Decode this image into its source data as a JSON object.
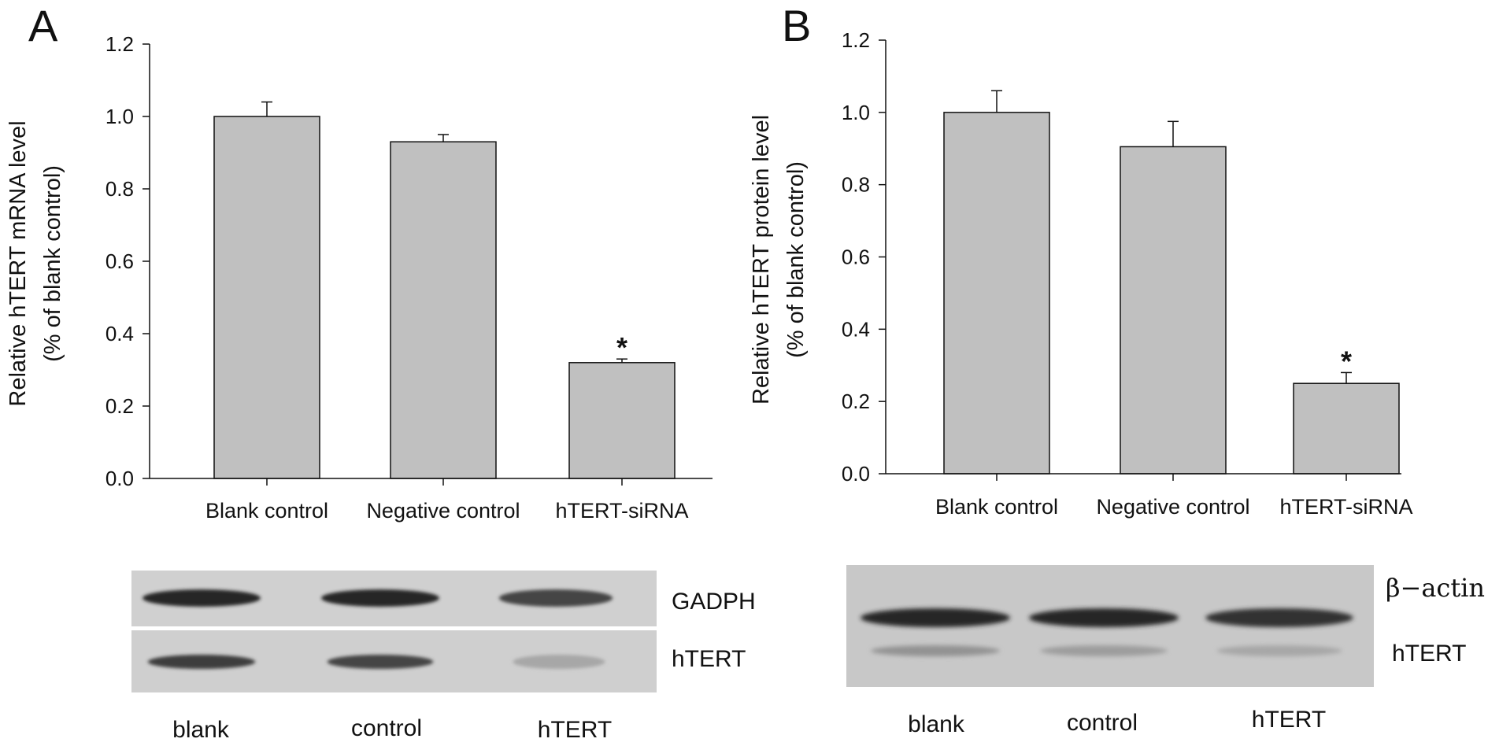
{
  "chart_data": [
    {
      "panel": "A",
      "type": "bar",
      "categories": [
        "Blank control",
        "Negative control",
        "hTERT-siRNA"
      ],
      "values": [
        1.0,
        0.93,
        0.32
      ],
      "errors": [
        0.04,
        0.02,
        0.01
      ],
      "significance": [
        "",
        "",
        "*"
      ],
      "ylabel_line1": "Relative hTERT mRNA level",
      "ylabel_line2": "(% of blank control)",
      "ylim": [
        0,
        1.2
      ],
      "yticks": [
        "0.0",
        "0.2",
        "0.4",
        "0.6",
        "0.8",
        "1.0",
        "1.2"
      ],
      "bar_color": "#c0c0c0",
      "grid": false,
      "blot": {
        "band_labels": [
          "GADPH",
          "hTERT"
        ],
        "lane_labels": [
          "blank",
          "control",
          "hTERT"
        ],
        "relative_intensity": {
          "GADPH": [
            1.0,
            1.0,
            0.85
          ],
          "hTERT": [
            0.9,
            0.85,
            0.35
          ]
        }
      }
    },
    {
      "panel": "B",
      "type": "bar",
      "categories": [
        "Blank control",
        "Negative control",
        "hTERT-siRNA"
      ],
      "values": [
        1.0,
        0.905,
        0.25
      ],
      "errors": [
        0.06,
        0.07,
        0.03
      ],
      "significance": [
        "",
        "",
        "*"
      ],
      "ylabel_line1": "Relative hTERT protein level",
      "ylabel_line2": "(% of blank control)",
      "ylim": [
        0,
        1.2
      ],
      "yticks": [
        "0.0",
        "0.2",
        "0.4",
        "0.6",
        "0.8",
        "1.0",
        "1.2"
      ],
      "bar_color": "#c0c0c0",
      "grid": false,
      "blot": {
        "band_labels": [
          "β−actin",
          "hTERT"
        ],
        "lane_labels": [
          "blank",
          "control",
          "hTERT"
        ],
        "relative_intensity": {
          "β−actin": [
            1.0,
            1.0,
            0.95
          ],
          "hTERT": [
            0.45,
            0.4,
            0.35
          ]
        }
      }
    }
  ]
}
